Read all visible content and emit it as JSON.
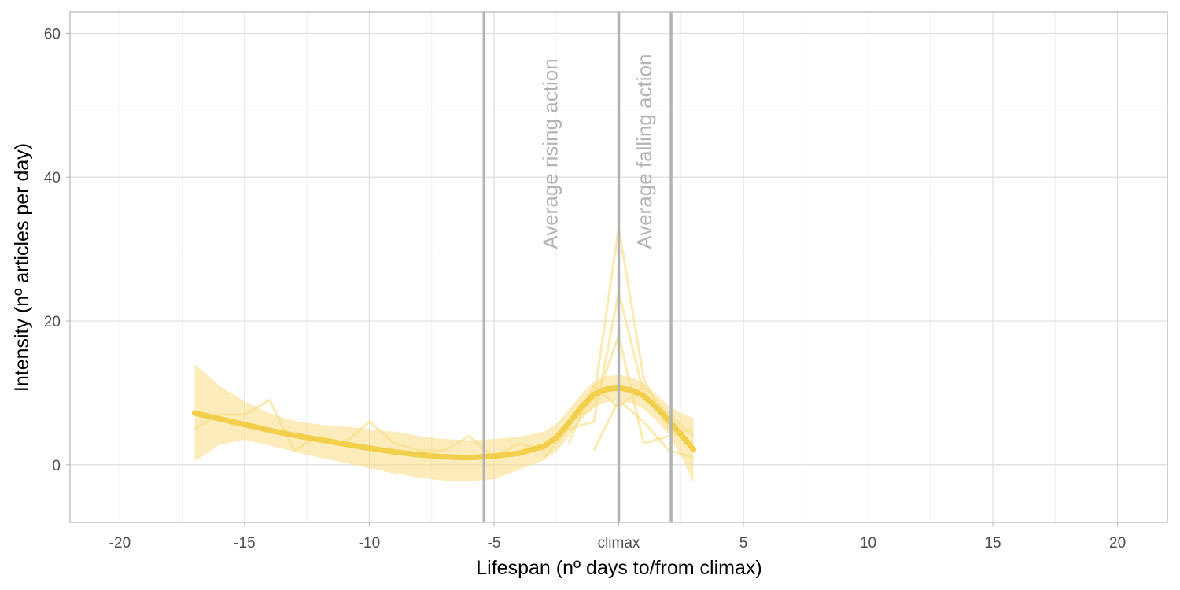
{
  "chart_data": {
    "type": "line",
    "title": "",
    "xlabel": "Lifespan (nº days to/from climax)",
    "ylabel": "Intensity (nº articles per day)",
    "xlim": [
      -22,
      22
    ],
    "ylim": [
      -8,
      63
    ],
    "x_ticks": [
      {
        "value": -20,
        "label": "-20"
      },
      {
        "value": -15,
        "label": "-15"
      },
      {
        "value": -10,
        "label": "-10"
      },
      {
        "value": -5,
        "label": "-5"
      },
      {
        "value": 0,
        "label": "climax"
      },
      {
        "value": 5,
        "label": "5"
      },
      {
        "value": 10,
        "label": "10"
      },
      {
        "value": 15,
        "label": "15"
      },
      {
        "value": 20,
        "label": "20"
      }
    ],
    "y_ticks": [
      {
        "value": 0,
        "label": "0"
      },
      {
        "value": 20,
        "label": "20"
      },
      {
        "value": 40,
        "label": "40"
      },
      {
        "value": 60,
        "label": "60"
      }
    ],
    "grid": true,
    "legend": "none",
    "colors": {
      "line": "#f2cf4a",
      "band": "#f9dd84",
      "vline": "#b3b3b3",
      "annotation": "#b3b3b3"
    },
    "vlines": [
      {
        "x": -5.4,
        "label": "Average rising action"
      },
      {
        "x": 0,
        "label": ""
      },
      {
        "x": 2.1,
        "label": "Average falling action"
      }
    ],
    "individual_series": [
      {
        "x": [
          -17,
          -16,
          -15,
          -14,
          -13,
          -12,
          -11,
          -10,
          -9,
          -8,
          -7,
          -6,
          -5,
          -4,
          -3,
          -2,
          -1,
          0,
          1,
          2,
          3
        ],
        "y": [
          5,
          7,
          7,
          9,
          2,
          4,
          3,
          6,
          3,
          2,
          2,
          4,
          1,
          3,
          2,
          6,
          9,
          33,
          12,
          5,
          3
        ]
      },
      {
        "x": [
          -3,
          -2,
          -1,
          0,
          1,
          2,
          3
        ],
        "y": [
          1,
          5,
          6,
          24,
          10,
          6,
          2
        ]
      },
      {
        "x": [
          -2,
          -1,
          0,
          1,
          2,
          3
        ],
        "y": [
          6,
          8,
          18,
          3,
          4,
          5
        ]
      },
      {
        "x": [
          -1,
          0,
          1,
          2,
          3
        ],
        "y": [
          2,
          9,
          6,
          2,
          1
        ]
      },
      {
        "x": [
          -2,
          -1,
          0,
          1,
          2,
          3
        ],
        "y": [
          3,
          11,
          8,
          11,
          7,
          4
        ]
      }
    ],
    "smooth": {
      "x": [
        -17,
        -16,
        -15,
        -14,
        -13,
        -12,
        -11,
        -10,
        -9,
        -8,
        -7,
        -6,
        -5,
        -4,
        -3,
        -2.5,
        -2,
        -1.5,
        -1,
        -0.5,
        0,
        0.5,
        1,
        1.5,
        2,
        2.5,
        3
      ],
      "y": [
        7.2,
        6.4,
        5.6,
        4.8,
        4.1,
        3.5,
        2.9,
        2.3,
        1.8,
        1.4,
        1.1,
        1.0,
        1.2,
        1.6,
        2.6,
        3.8,
        5.8,
        8.0,
        9.8,
        10.5,
        10.7,
        10.4,
        9.6,
        8.0,
        6.2,
        4.2,
        2.1
      ],
      "lower": [
        0.5,
        2.8,
        3.5,
        2.7,
        1.8,
        1.0,
        0.3,
        -0.5,
        -1.2,
        -1.8,
        -2.2,
        -2.3,
        -2.0,
        -0.7,
        0.6,
        1.9,
        3.9,
        6.2,
        8.0,
        8.7,
        8.9,
        8.6,
        7.8,
        6.2,
        4.2,
        1.2,
        -2.5
      ],
      "upper": [
        14.0,
        11.0,
        8.8,
        7.2,
        6.1,
        5.6,
        5.3,
        5.0,
        4.6,
        4.0,
        3.6,
        3.4,
        3.6,
        3.9,
        4.6,
        5.7,
        7.7,
        9.8,
        11.6,
        12.3,
        12.5,
        12.2,
        11.4,
        9.8,
        8.2,
        7.2,
        6.5
      ]
    }
  }
}
